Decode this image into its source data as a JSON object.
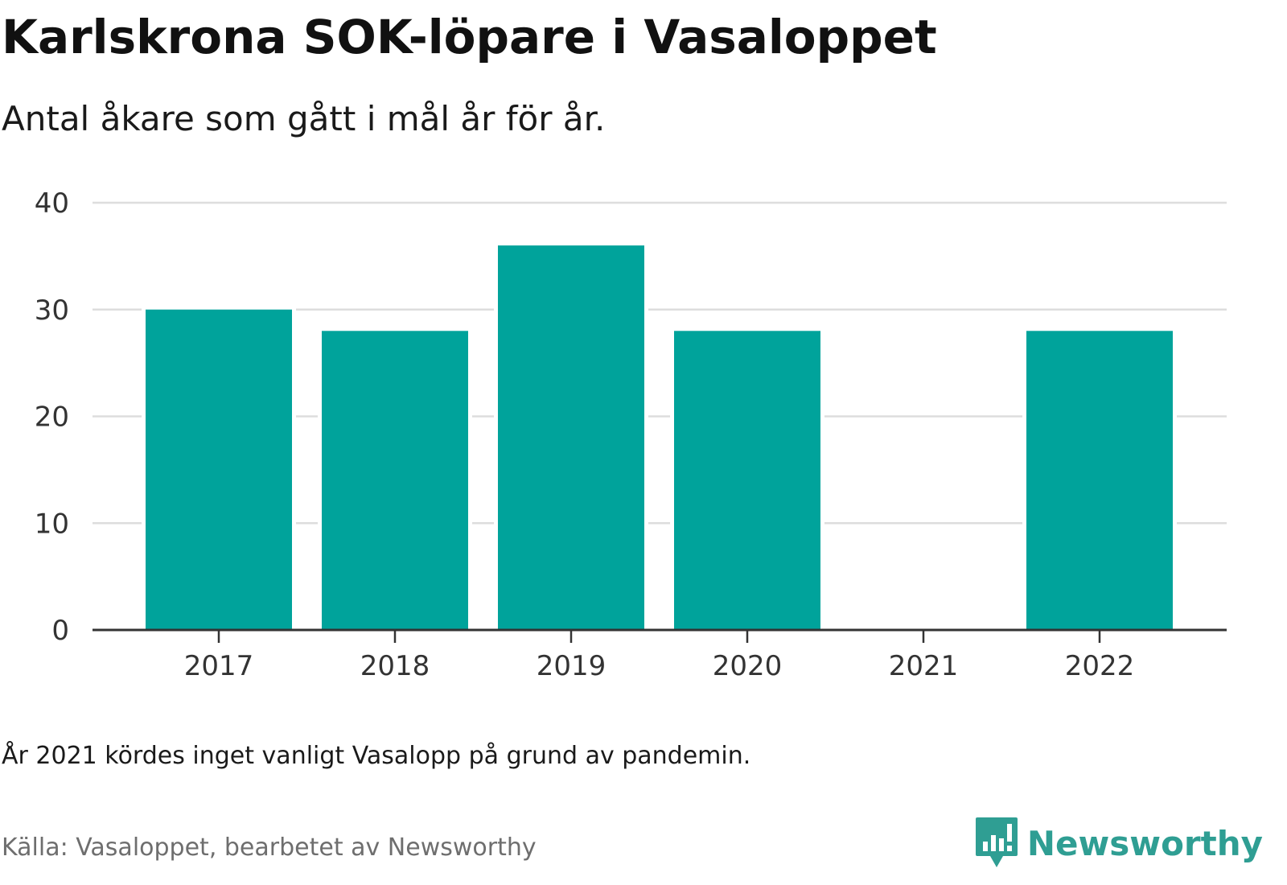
{
  "title": "Karlskrona SOK-löpare i Vasaloppet",
  "subtitle": "Antal åkare som gått i mål år för år.",
  "note": "År 2021 kördes inget vanligt Vasalopp på grund av pandemin.",
  "source": "Källa: Vasaloppet, bearbetet av Newsworthy",
  "brand": {
    "name": "Newsworthy",
    "icon": "newsworthy-logo-icon",
    "color": "#2f9e93"
  },
  "chart_data": {
    "type": "bar",
    "categories": [
      "2017",
      "2018",
      "2019",
      "2020",
      "2021",
      "2022"
    ],
    "values": [
      30,
      28,
      36,
      28,
      0,
      28
    ],
    "ylim": [
      0,
      40
    ],
    "yticks": [
      "0",
      "10",
      "20",
      "30",
      "40"
    ],
    "xlabel": "",
    "ylabel": "",
    "grid": true,
    "legend": "none",
    "bar_color": "#00a39b"
  }
}
